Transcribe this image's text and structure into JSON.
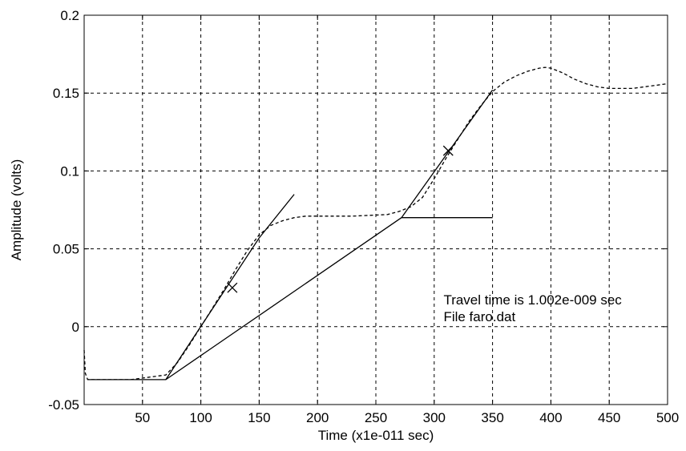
{
  "chart_data": {
    "type": "line",
    "title": "",
    "xlabel": "Time (x1e-011 sec)",
    "ylabel": "Amplitude (volts)",
    "xlim": [
      0,
      500
    ],
    "ylim": [
      -0.05,
      0.2
    ],
    "x_ticks": [
      50,
      100,
      150,
      200,
      250,
      300,
      350,
      400,
      450,
      500
    ],
    "x_tick_labels": [
      "50",
      "100",
      "150",
      "200",
      "250",
      "300",
      "350",
      "400",
      "450",
      "500"
    ],
    "y_ticks": [
      -0.05,
      0,
      0.05,
      0.1,
      0.15,
      0.2
    ],
    "y_tick_labels": [
      "-0.05",
      "0",
      "0.05",
      "0.1",
      "0.15",
      "0.2"
    ],
    "grid": true,
    "legend": false,
    "series": [
      {
        "style": "dashed",
        "color": "#000000",
        "x": [
          0,
          1,
          3,
          5,
          10,
          40,
          70,
          80,
          90,
          100,
          110,
          120,
          130,
          140,
          150,
          160,
          170,
          180,
          190,
          200,
          230,
          260,
          270,
          280,
          290,
          300,
          310,
          320,
          330,
          340,
          350,
          360,
          370,
          380,
          390,
          395,
          400,
          410,
          420,
          430,
          440,
          450,
          460,
          470,
          480,
          490,
          500
        ],
        "y": [
          -0.015,
          -0.03,
          -0.034,
          -0.034,
          -0.034,
          -0.034,
          -0.031,
          -0.023,
          -0.012,
          0.0,
          0.012,
          0.024,
          0.037,
          0.049,
          0.059,
          0.065,
          0.068,
          0.07,
          0.071,
          0.071,
          0.071,
          0.072,
          0.074,
          0.077,
          0.083,
          0.095,
          0.108,
          0.12,
          0.132,
          0.142,
          0.151,
          0.157,
          0.161,
          0.164,
          0.166,
          0.1665,
          0.166,
          0.163,
          0.159,
          0.156,
          0.154,
          0.153,
          0.153,
          0.153,
          0.154,
          0.155,
          0.156
        ]
      },
      {
        "style": "solid",
        "color": "#000000",
        "x": [
          3,
          70,
          272,
          350
        ],
        "y": [
          -0.034,
          -0.034,
          0.07,
          0.07
        ],
        "x_fit_breaks": [
          70,
          150,
          272,
          350
        ],
        "note": ""
      },
      {
        "style": "solid",
        "color": "#000000",
        "x": [
          70,
          150,
          180
        ],
        "y": [
          -0.034,
          0.057,
          0.085
        ]
      },
      {
        "style": "solid",
        "color": "#000000",
        "x": [
          272,
          350
        ],
        "y": [
          0.07,
          0.152
        ]
      }
    ],
    "markers": [
      {
        "symbol": "x",
        "x": 127,
        "y": 0.025
      },
      {
        "symbol": "x",
        "x": 312,
        "y": 0.113
      }
    ],
    "annotations": [
      {
        "text": "Travel time is 1.002e-009 sec",
        "x": 308,
        "y": 0.0175
      },
      {
        "text": "File faro.dat",
        "x": 308,
        "y": 0.0065
      }
    ]
  }
}
